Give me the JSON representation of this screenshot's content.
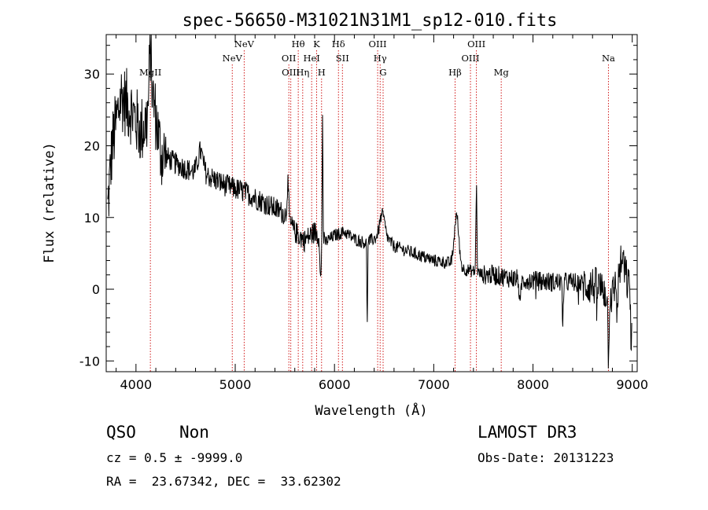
{
  "chart_data": {
    "type": "line",
    "title": "spec-56650-M31021N31M1_sp12-010.fits",
    "xlabel": "Wavelength (Å)",
    "ylabel": "Flux (relative)",
    "xlim": [
      3700,
      9050
    ],
    "ylim": [
      -11.5,
      35.5
    ],
    "xticks": [
      4000,
      5000,
      6000,
      7000,
      8000,
      9000
    ],
    "yticks": [
      -10,
      0,
      10,
      20,
      30
    ],
    "continuum_anchors": {
      "x": [
        3700,
        3760,
        3850,
        3950,
        4050,
        4130,
        4180,
        4250,
        4400,
        4550,
        4700,
        4900,
        5100,
        5300,
        5500,
        5600,
        5700,
        5800,
        5900,
        6000,
        6100,
        6200,
        6300,
        6400,
        6500,
        6600,
        6700,
        6800,
        6900,
        7000,
        7100,
        7200,
        7300,
        7400,
        7500,
        7600,
        7800,
        8000,
        8200,
        8400,
        8600,
        8700,
        8800,
        8850,
        8900,
        8950,
        9000
      ],
      "y": [
        8,
        20,
        27,
        25,
        22,
        24,
        26,
        19,
        17.5,
        16.5,
        16,
        14.5,
        13.5,
        12,
        10.5,
        8,
        6.8,
        8,
        6.5,
        7.5,
        8,
        7,
        6.5,
        7,
        7.5,
        6,
        5.5,
        5,
        4.5,
        4,
        3.8,
        3.5,
        2.8,
        2.5,
        2,
        2,
        1.5,
        1.2,
        1,
        1,
        0.5,
        0,
        -1,
        2,
        4,
        1,
        -1
      ]
    },
    "emission_features": [
      {
        "center": 4145,
        "amplitude": 9,
        "width": 12
      },
      {
        "center": 4650,
        "amplitude": 3,
        "width": 25
      },
      {
        "center": 5530,
        "amplitude": 5,
        "width": 8
      },
      {
        "center": 5880,
        "amplitude": 17,
        "width": 4
      },
      {
        "center": 6480,
        "amplitude": 3,
        "width": 25
      },
      {
        "center": 7230,
        "amplitude": 7,
        "width": 22
      },
      {
        "center": 7430,
        "amplitude": 12,
        "width": 5
      }
    ],
    "absorption_features": [
      {
        "center": 5862,
        "amplitude": -6,
        "width": 6
      },
      {
        "center": 6330,
        "amplitude": -11,
        "width": 4
      },
      {
        "center": 7870,
        "amplitude": -4,
        "width": 8
      },
      {
        "center": 8300,
        "amplitude": -5,
        "width": 6
      },
      {
        "center": 8760,
        "amplitude": -8,
        "width": 6
      },
      {
        "center": 8850,
        "amplitude": -6,
        "width": 6
      },
      {
        "center": 8990,
        "amplitude": -8,
        "width": 5
      }
    ],
    "spectral_lines": [
      {
        "label": "MgII",
        "wavelength": 4145,
        "row": 3
      },
      {
        "label": "NeV",
        "wavelength": 4970,
        "row": 2
      },
      {
        "label": "NeV",
        "wavelength": 5090,
        "row": 1
      },
      {
        "label": "OII",
        "wavelength": 5540,
        "row": 2
      },
      {
        "label": "OIII",
        "wavelength": 5560,
        "row": 3
      },
      {
        "label": "Hθ",
        "wavelength": 5635,
        "row": 1
      },
      {
        "label": "Hη",
        "wavelength": 5680,
        "row": 3
      },
      {
        "label": "HeI",
        "wavelength": 5770,
        "row": 2
      },
      {
        "label": "K",
        "wavelength": 5820,
        "row": 1
      },
      {
        "label": "H",
        "wavelength": 5870,
        "row": 3
      },
      {
        "label": "Hδ",
        "wavelength": 6040,
        "row": 1
      },
      {
        "label": "SII",
        "wavelength": 6080,
        "row": 2
      },
      {
        "label": "OIII",
        "wavelength": 6435,
        "row": 1
      },
      {
        "label": "Hγ",
        "wavelength": 6460,
        "row": 2
      },
      {
        "label": "G",
        "wavelength": 6490,
        "row": 3
      },
      {
        "label": "Hβ",
        "wavelength": 7215,
        "row": 3
      },
      {
        "label": "OIII",
        "wavelength": 7370,
        "row": 2
      },
      {
        "label": "OIII",
        "wavelength": 7430,
        "row": 1
      },
      {
        "label": "Mg",
        "wavelength": 7680,
        "row": 3
      },
      {
        "label": "Na",
        "wavelength": 8760,
        "row": 2
      }
    ],
    "line_color": "#000000",
    "marker_color": "#cc0000"
  },
  "footer": {
    "class_label": "QSO",
    "subclass_label": "Non",
    "cz_text": "cz = 0.5 ± -9999.0",
    "coords_text": "RA =  23.67342, DEC =  33.62302",
    "survey_label": "LAMOST DR3",
    "obs_date_text": "Obs-Date: 20131223"
  }
}
